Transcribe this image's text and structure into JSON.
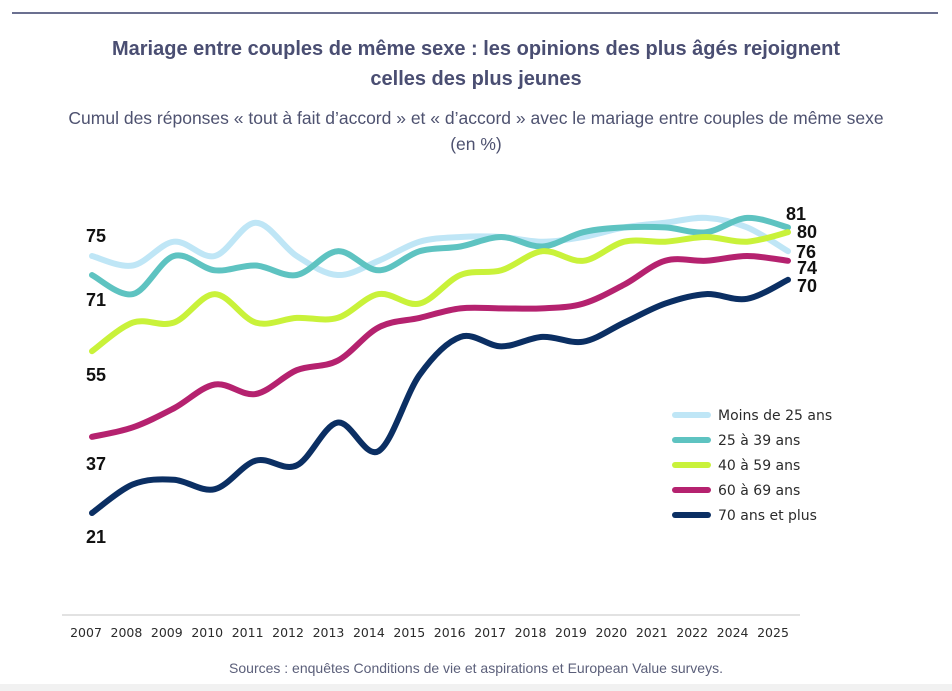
{
  "chart_data": {
    "type": "line",
    "title": "Mariage entre couples de même sexe : les opinions des plus âgés rejoignent celles des plus jeunes",
    "title_lines": [
      "Mariage entre couples de même sexe : les opinions des plus âgés rejoignent",
      "celles des plus jeunes"
    ],
    "subtitle_lines": [
      "Cumul des réponses « tout à fait d’accord » et « d’accord » avec le mariage entre couples de même sexe",
      "(en %)"
    ],
    "xlabel": "",
    "ylabel": "",
    "x": [
      "2007",
      "2008",
      "2009",
      "2010",
      "2011",
      "2012",
      "2013",
      "2014",
      "2015",
      "2016",
      "2017",
      "2018",
      "2019",
      "2020",
      "2021",
      "2022",
      "2024",
      "2025"
    ],
    "ylim": [
      15,
      90
    ],
    "grid": false,
    "legend_position": "right",
    "series": [
      {
        "name": "Moins de 25 ans",
        "color": "#bfe6f6",
        "values": [
          75,
          73,
          78,
          75,
          82,
          75,
          71,
          74,
          78,
          79,
          79,
          78,
          79,
          81,
          82,
          83,
          81,
          76
        ],
        "start_label": "75",
        "end_label": "76"
      },
      {
        "name": "25 à 39 ans",
        "color": "#5ec3c1",
        "values": [
          71,
          67,
          75,
          72,
          73,
          71,
          76,
          72,
          76,
          77,
          79,
          77,
          80,
          81,
          81,
          80,
          83,
          81
        ],
        "start_label": "71",
        "end_label": "81"
      },
      {
        "name": "40 à 59 ans",
        "color": "#c9f23a",
        "values": [
          55,
          61,
          61,
          67,
          61,
          62,
          62,
          67,
          65,
          71,
          72,
          76,
          74,
          78,
          78,
          79,
          78,
          80
        ],
        "start_label": "55",
        "end_label": "80"
      },
      {
        "name": "60 à 69 ans",
        "color": "#b5226f",
        "values": [
          37,
          39,
          43,
          48,
          46,
          51,
          53,
          60,
          62,
          64,
          64,
          64,
          65,
          69,
          74,
          74,
          75,
          74
        ],
        "start_label": "37",
        "end_label": "74"
      },
      {
        "name": "70 ans et plus",
        "color": "#0b2f63",
        "values": [
          21,
          27,
          28,
          26,
          32,
          31,
          40,
          34,
          50,
          58,
          56,
          58,
          57,
          61,
          65,
          67,
          66,
          70
        ],
        "start_label": "21",
        "end_label": "70"
      }
    ],
    "source": "Sources : enquêtes Conditions de vie et aspirations et European Value surveys."
  }
}
